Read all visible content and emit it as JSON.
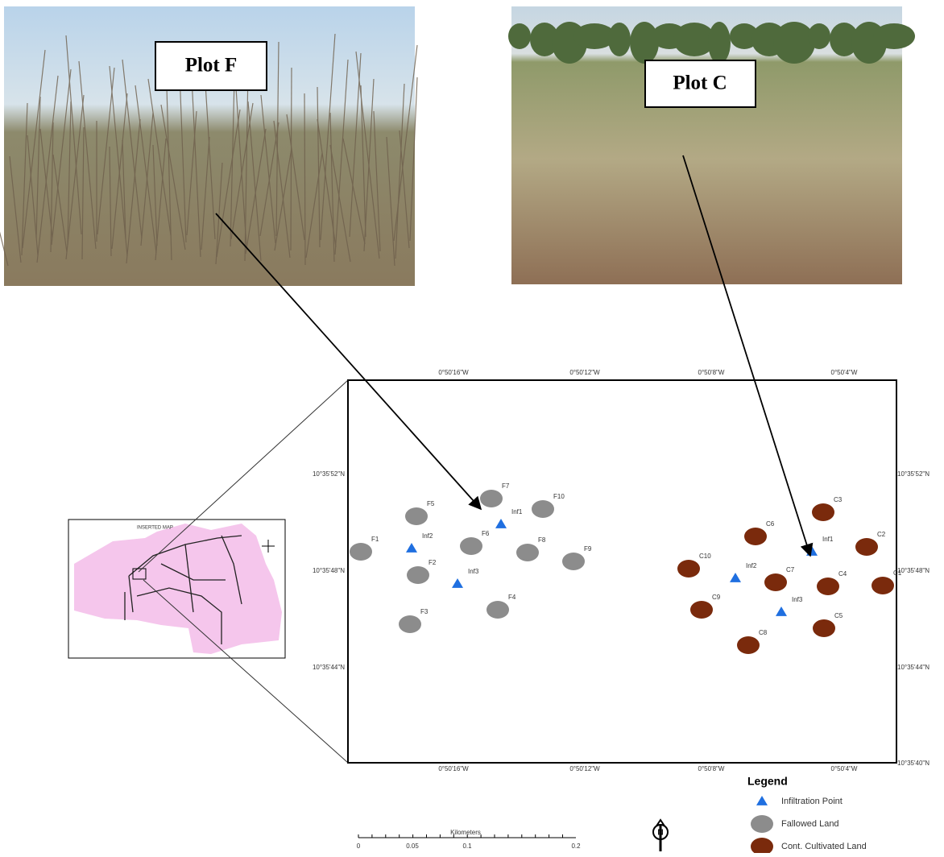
{
  "photos": [
    {
      "label": "Plot F"
    },
    {
      "label": "Plot C"
    }
  ],
  "map": {
    "top_ticks": [
      "0°50'16\"W",
      "0°50'12\"W",
      "0°50'8\"W",
      "0°50'4\"W"
    ],
    "bottom_ticks": [
      "0°50'16\"W",
      "0°50'12\"W",
      "0°50'8\"W",
      "0°50'4\"W"
    ],
    "left_ticks": [
      "10°35'52\"N",
      "10°35'48\"N",
      "10°35'44\"N"
    ],
    "right_ticks": [
      "10°35'52\"N",
      "10°35'48\"N",
      "10°35'44\"N",
      "10°35'40\"N"
    ],
    "points": [
      {
        "label": "F1",
        "kind": "fallowed"
      },
      {
        "label": "F2",
        "kind": "fallowed"
      },
      {
        "label": "F3",
        "kind": "fallowed"
      },
      {
        "label": "F4",
        "kind": "fallowed"
      },
      {
        "label": "F5",
        "kind": "fallowed"
      },
      {
        "label": "F6",
        "kind": "fallowed"
      },
      {
        "label": "F7",
        "kind": "fallowed"
      },
      {
        "label": "F8",
        "kind": "fallowed"
      },
      {
        "label": "F9",
        "kind": "fallowed"
      },
      {
        "label": "F10",
        "kind": "fallowed"
      },
      {
        "label": "Inf1",
        "kind": "infiltration"
      },
      {
        "label": "Inf2",
        "kind": "infiltration"
      },
      {
        "label": "Inf3",
        "kind": "infiltration"
      },
      {
        "label": "C1",
        "kind": "cultivated"
      },
      {
        "label": "C2",
        "kind": "cultivated"
      },
      {
        "label": "C3",
        "kind": "cultivated"
      },
      {
        "label": "C4",
        "kind": "cultivated"
      },
      {
        "label": "C5",
        "kind": "cultivated"
      },
      {
        "label": "C6",
        "kind": "cultivated"
      },
      {
        "label": "C7",
        "kind": "cultivated"
      },
      {
        "label": "C8",
        "kind": "cultivated"
      },
      {
        "label": "C9",
        "kind": "cultivated"
      },
      {
        "label": "C10",
        "kind": "cultivated"
      },
      {
        "label": "Inf1",
        "kind": "infiltration"
      },
      {
        "label": "Inf2",
        "kind": "infiltration"
      },
      {
        "label": "Inf3",
        "kind": "infiltration"
      }
    ]
  },
  "inset": {
    "title": "INSERTED MAP"
  },
  "legend": {
    "title": "Legend",
    "items": [
      {
        "label": "Infiltration Point",
        "kind": "infiltration"
      },
      {
        "label": "Fallowed Land",
        "kind": "fallowed"
      },
      {
        "label": "Cont. Cultivated Land",
        "kind": "cultivated"
      }
    ]
  },
  "scale_bar": {
    "title": "Kilometers",
    "ticks": [
      "0",
      "0.05",
      "0.1",
      "0.2"
    ]
  }
}
